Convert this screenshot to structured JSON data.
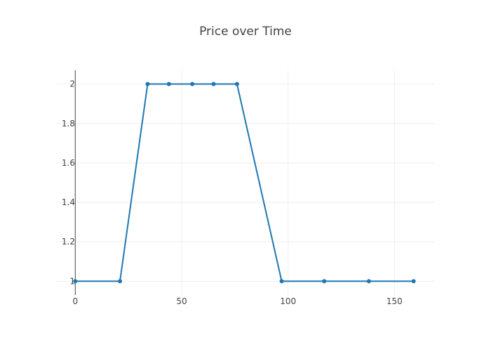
{
  "chart_data": {
    "type": "line",
    "title": "Price over Time",
    "xlabel": "",
    "ylabel": "",
    "x": [
      0,
      21,
      34,
      44,
      55,
      65,
      76,
      97,
      117,
      138,
      159
    ],
    "series": [
      {
        "values": [
          1,
          1,
          2,
          2,
          2,
          2,
          2,
          1,
          1,
          1,
          1
        ],
        "color": "#1f77b4",
        "markers": true
      }
    ],
    "xlim": [
      -9,
      169
    ],
    "ylim": [
      0.93,
      2.07
    ],
    "xticks": [
      0,
      50,
      100,
      150
    ],
    "yticks": [
      1,
      1.2,
      1.4,
      1.6,
      1.8,
      2
    ],
    "ytick_labels": [
      "1",
      "1.2",
      "1.4",
      "1.6",
      "1.8",
      "2"
    ],
    "grid": true,
    "grid_color": "#eeeeee",
    "axis_line_color": "#444444",
    "text_color": "#444444",
    "legend": "none"
  }
}
